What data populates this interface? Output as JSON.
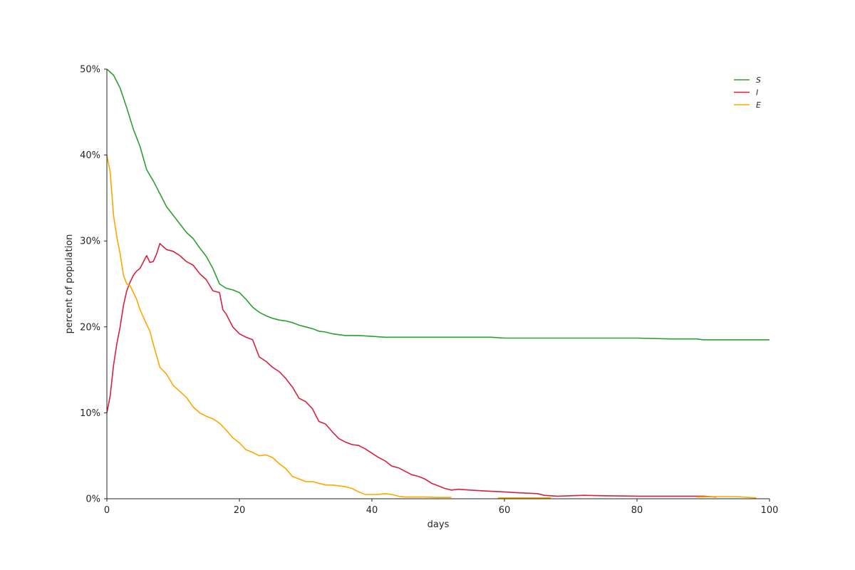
{
  "chart_data": {
    "type": "line",
    "title": "",
    "xlabel": "days",
    "ylabel": "percent of population",
    "xlim": [
      0,
      100
    ],
    "ylim": [
      0,
      50
    ],
    "x_ticks": [
      0,
      20,
      40,
      60,
      80,
      100
    ],
    "x_tick_labels": [
      "0",
      "20",
      "40",
      "60",
      "80",
      "100"
    ],
    "y_ticks": [
      0,
      10,
      20,
      30,
      40,
      50
    ],
    "y_tick_labels": [
      "0%",
      "10%",
      "20%",
      "30%",
      "40%",
      "50%"
    ],
    "grid": false,
    "legend_position": "top-right",
    "series": [
      {
        "name": "S",
        "color": "#2ca02c",
        "points": [
          [
            0,
            50
          ],
          [
            1,
            49.3
          ],
          [
            2,
            47.8
          ],
          [
            3,
            45.5
          ],
          [
            4,
            43
          ],
          [
            5,
            41
          ],
          [
            6,
            38.3
          ],
          [
            7,
            37
          ],
          [
            8,
            35.5
          ],
          [
            9,
            34
          ],
          [
            10,
            33
          ],
          [
            11,
            32
          ],
          [
            12,
            31
          ],
          [
            13,
            30.3
          ],
          [
            14,
            29.2
          ],
          [
            15,
            28.2
          ],
          [
            16,
            26.8
          ],
          [
            17,
            25
          ],
          [
            18,
            24.5
          ],
          [
            19,
            24.3
          ],
          [
            20,
            24
          ],
          [
            21,
            23.2
          ],
          [
            22,
            22.3
          ],
          [
            23,
            21.7
          ],
          [
            24,
            21.3
          ],
          [
            25,
            21
          ],
          [
            26,
            20.8
          ],
          [
            27,
            20.7
          ],
          [
            28,
            20.5
          ],
          [
            29,
            20.2
          ],
          [
            30,
            20
          ],
          [
            31,
            19.8
          ],
          [
            32,
            19.5
          ],
          [
            33,
            19.4
          ],
          [
            34,
            19.2
          ],
          [
            35,
            19.1
          ],
          [
            36,
            19
          ],
          [
            38,
            19
          ],
          [
            40,
            18.9
          ],
          [
            42,
            18.8
          ],
          [
            45,
            18.8
          ],
          [
            50,
            18.8
          ],
          [
            55,
            18.8
          ],
          [
            58,
            18.8
          ],
          [
            60,
            18.7
          ],
          [
            65,
            18.7
          ],
          [
            70,
            18.7
          ],
          [
            75,
            18.7
          ],
          [
            80,
            18.7
          ],
          [
            85,
            18.6
          ],
          [
            89,
            18.6
          ],
          [
            90,
            18.5
          ],
          [
            95,
            18.5
          ],
          [
            100,
            18.5
          ]
        ]
      },
      {
        "name": "I",
        "color": "#d62040",
        "points": [
          [
            0,
            10
          ],
          [
            0.5,
            12
          ],
          [
            1,
            15.5
          ],
          [
            1.5,
            18
          ],
          [
            2,
            20
          ],
          [
            2.5,
            22.5
          ],
          [
            3,
            24.2
          ],
          [
            3.5,
            25.2
          ],
          [
            4,
            26
          ],
          [
            4.5,
            26.5
          ],
          [
            5,
            26.8
          ],
          [
            6,
            28.3
          ],
          [
            6.5,
            27.5
          ],
          [
            7,
            27.6
          ],
          [
            7.5,
            28.5
          ],
          [
            8,
            29.7
          ],
          [
            9,
            29
          ],
          [
            10,
            28.8
          ],
          [
            11,
            28.3
          ],
          [
            12,
            27.6
          ],
          [
            13,
            27.2
          ],
          [
            14,
            26.2
          ],
          [
            15,
            25.5
          ],
          [
            16,
            24.2
          ],
          [
            17,
            24
          ],
          [
            17.5,
            22
          ],
          [
            18,
            21.5
          ],
          [
            19,
            20
          ],
          [
            20,
            19.2
          ],
          [
            21,
            18.8
          ],
          [
            22,
            18.5
          ],
          [
            23,
            16.5
          ],
          [
            24,
            16
          ],
          [
            25,
            15.3
          ],
          [
            26,
            14.8
          ],
          [
            27,
            14
          ],
          [
            28,
            13
          ],
          [
            29,
            11.7
          ],
          [
            30,
            11.3
          ],
          [
            31,
            10.5
          ],
          [
            32,
            9
          ],
          [
            33,
            8.7
          ],
          [
            34,
            7.8
          ],
          [
            35,
            7
          ],
          [
            36,
            6.6
          ],
          [
            37,
            6.3
          ],
          [
            38,
            6.2
          ],
          [
            39,
            5.8
          ],
          [
            40,
            5.3
          ],
          [
            41,
            4.8
          ],
          [
            42,
            4.4
          ],
          [
            43,
            3.8
          ],
          [
            44,
            3.6
          ],
          [
            45,
            3.2
          ],
          [
            46,
            2.8
          ],
          [
            47,
            2.6
          ],
          [
            48,
            2.3
          ],
          [
            49,
            1.8
          ],
          [
            50,
            1.5
          ],
          [
            51,
            1.2
          ],
          [
            52,
            1
          ],
          [
            53,
            1.1
          ],
          [
            55,
            1
          ],
          [
            57,
            0.9
          ],
          [
            60,
            0.8
          ],
          [
            62,
            0.7
          ],
          [
            65,
            0.6
          ],
          [
            66,
            0.4
          ],
          [
            68,
            0.3
          ],
          [
            70,
            0.35
          ],
          [
            72,
            0.4
          ],
          [
            75,
            0.35
          ],
          [
            80,
            0.3
          ],
          [
            85,
            0.3
          ],
          [
            90,
            0.3
          ],
          [
            92,
            0.2
          ]
        ]
      },
      {
        "name": "E",
        "color": "#ffa500",
        "points": [
          [
            0,
            40
          ],
          [
            0.5,
            38
          ],
          [
            1,
            33
          ],
          [
            1.5,
            30.5
          ],
          [
            2,
            28.5
          ],
          [
            2.5,
            26
          ],
          [
            3,
            25
          ],
          [
            3.5,
            24.8
          ],
          [
            4,
            24
          ],
          [
            4.5,
            23.2
          ],
          [
            5,
            22
          ],
          [
            6,
            20.3
          ],
          [
            6.5,
            19.5
          ],
          [
            7,
            18
          ],
          [
            8,
            15.3
          ],
          [
            9,
            14.5
          ],
          [
            10,
            13.2
          ],
          [
            11,
            12.5
          ],
          [
            12,
            11.8
          ],
          [
            13,
            10.7
          ],
          [
            14,
            10
          ],
          [
            15,
            9.6
          ],
          [
            16,
            9.3
          ],
          [
            17,
            8.8
          ],
          [
            18,
            8
          ],
          [
            19,
            7.1
          ],
          [
            20,
            6.5
          ],
          [
            21,
            5.7
          ],
          [
            22,
            5.4
          ],
          [
            23,
            5
          ],
          [
            24,
            5.1
          ],
          [
            25,
            4.8
          ],
          [
            26,
            4.1
          ],
          [
            27,
            3.5
          ],
          [
            28,
            2.6
          ],
          [
            29,
            2.3
          ],
          [
            30,
            2
          ],
          [
            31,
            2
          ],
          [
            32,
            1.8
          ],
          [
            33,
            1.6
          ],
          [
            34,
            1.6
          ],
          [
            35,
            1.5
          ],
          [
            36,
            1.4
          ],
          [
            37,
            1.2
          ],
          [
            38,
            0.8
          ],
          [
            39,
            0.5
          ],
          [
            40,
            0.5
          ],
          [
            41,
            0.5
          ],
          [
            42,
            0.6
          ],
          [
            43,
            0.5
          ],
          [
            44,
            0.3
          ],
          [
            45,
            0.2
          ],
          [
            46,
            0.2
          ],
          [
            48,
            0.2
          ],
          [
            50,
            0.15
          ],
          [
            52,
            0.15
          ]
        ]
      },
      {
        "name": "E",
        "color": "#ffa500",
        "points": [
          [
            59,
            0.1
          ],
          [
            62,
            0.1
          ],
          [
            65,
            0.1
          ],
          [
            67,
            0.1
          ]
        ]
      },
      {
        "name": "E",
        "color": "#ffa500",
        "points": [
          [
            89,
            0.2
          ],
          [
            92,
            0.25
          ],
          [
            95,
            0.25
          ],
          [
            98,
            0.1
          ]
        ]
      }
    ],
    "legend": [
      {
        "label": "S",
        "color": "#2ca02c"
      },
      {
        "label": "I",
        "color": "#d62040"
      },
      {
        "label": "E",
        "color": "#ffa500"
      }
    ]
  }
}
